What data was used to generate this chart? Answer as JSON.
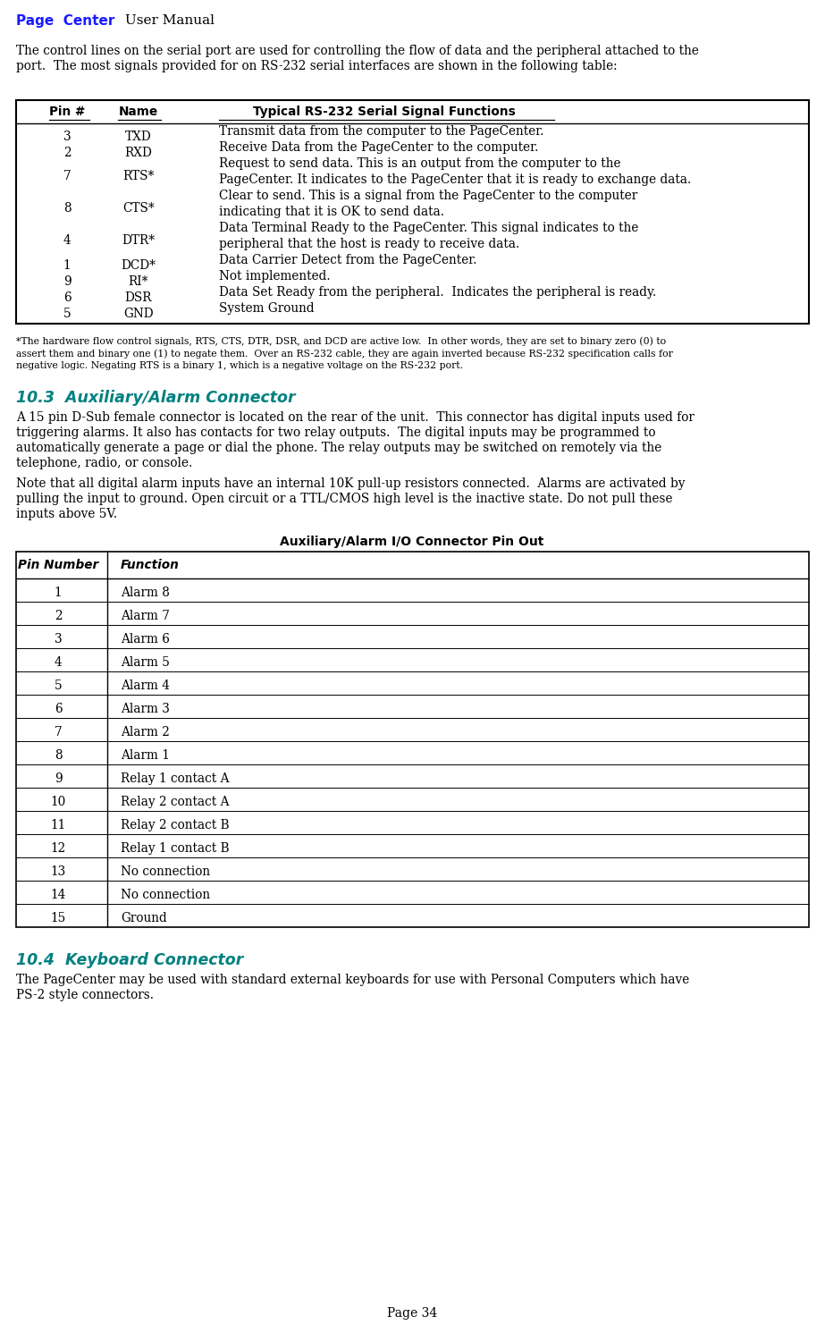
{
  "page_title_blue": "Page  Center",
  "page_title_rest": " User Manual",
  "page_number": "Page 34",
  "bg_color": "#ffffff",
  "text_color": "#000000",
  "blue_color": "#1a1aff",
  "teal_color": "#008080",
  "intro_lines": [
    "The control lines on the serial port are used for controlling the flow of data and the peripheral attached to the",
    "port.  The most signals provided for on RS-232 serial interfaces are shown in the following table:"
  ],
  "rs232_rows": [
    [
      "3",
      "TXD",
      [
        "Transmit data from the computer to the PageCenter."
      ]
    ],
    [
      "2",
      "RXD",
      [
        "Receive Data from the PageCenter to the computer."
      ]
    ],
    [
      "7",
      "RTS*",
      [
        "Request to send data. This is an output from the computer to the",
        "PageCenter. It indicates to the PageCenter that it is ready to exchange data."
      ]
    ],
    [
      "8",
      "CTS*",
      [
        "Clear to send. This is a signal from the PageCenter to the computer",
        "indicating that it is OK to send data."
      ]
    ],
    [
      "4",
      "DTR*",
      [
        "Data Terminal Ready to the PageCenter. This signal indicates to the",
        "peripheral that the host is ready to receive data."
      ]
    ],
    [
      "1",
      "DCD*",
      [
        "Data Carrier Detect from the PageCenter."
      ]
    ],
    [
      "9",
      "RI*",
      [
        "Not implemented."
      ]
    ],
    [
      "6",
      "DSR",
      [
        "Data Set Ready from the peripheral.  Indicates the peripheral is ready."
      ]
    ],
    [
      "5",
      "GND",
      [
        "System Ground"
      ]
    ]
  ],
  "footnote_lines": [
    "*The hardware flow control signals, RTS, CTS, DTR, DSR, and DCD are active low.  In other words, they are set to binary zero (0) to",
    "assert them and binary one (1) to negate them.  Over an RS-232 cable, they are again inverted because RS-232 specification calls for",
    "negative logic. Negating RTS is a binary 1, which is a negative voltage on the RS-232 port."
  ],
  "section_103_title": "10.3  Auxiliary/Alarm Connector",
  "p103_1_lines": [
    "A 15 pin D-Sub female connector is located on the rear of the unit.  This connector has digital inputs used for",
    "triggering alarms. It also has contacts for two relay outputs.  The digital inputs may be programmed to",
    "automatically generate a page or dial the phone. The relay outputs may be switched on remotely via the",
    "telephone, radio, or console."
  ],
  "p103_2_lines": [
    "Note that all digital alarm inputs have an internal 10K pull-up resistors connected.  Alarms are activated by",
    "pulling the input to ground. Open circuit or a TTL/CMOS high level is the inactive state. Do not pull these",
    "inputs above 5V."
  ],
  "alarm_table_title": "Auxiliary/Alarm I/O Connector Pin Out",
  "alarm_rows": [
    [
      "1",
      "Alarm 8"
    ],
    [
      "2",
      "Alarm 7"
    ],
    [
      "3",
      "Alarm 6"
    ],
    [
      "4",
      "Alarm 5"
    ],
    [
      "5",
      "Alarm 4"
    ],
    [
      "6",
      "Alarm 3"
    ],
    [
      "7",
      "Alarm 2"
    ],
    [
      "8",
      "Alarm 1"
    ],
    [
      "9",
      "Relay 1 contact A"
    ],
    [
      "10",
      "Relay 2 contact A"
    ],
    [
      "11",
      "Relay 2 contact B"
    ],
    [
      "12",
      "Relay 1 contact B"
    ],
    [
      "13",
      "No connection"
    ],
    [
      "14",
      "No connection"
    ],
    [
      "15",
      "Ground"
    ]
  ],
  "section_104_title": "10.4  Keyboard Connector",
  "p104_lines": [
    "The PageCenter may be used with standard external keyboards for use with Personal Computers which have",
    "PS-2 style connectors."
  ]
}
